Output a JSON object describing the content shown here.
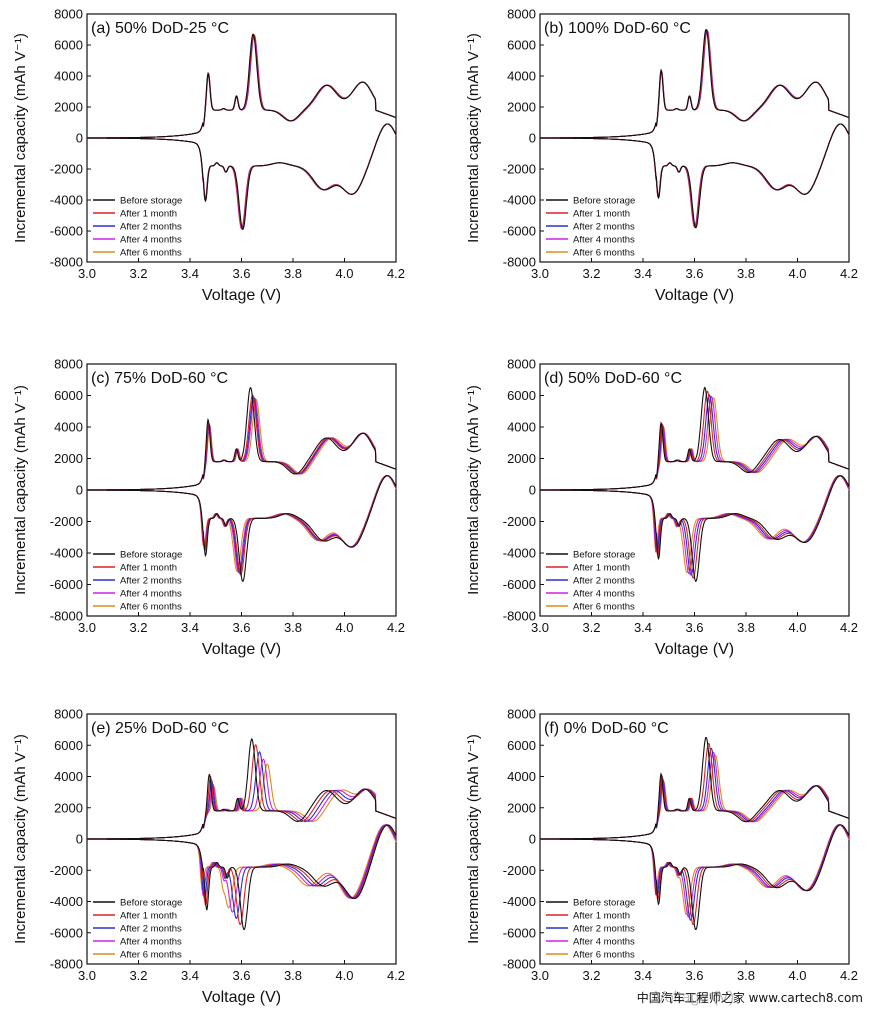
{
  "figure": {
    "watermark": "中国汽车工程师之家 www.cartech8.com"
  },
  "series_colors": {
    "Before storage": "#111111",
    "After 1 month": "#e02020",
    "After 2 months": "#2b2bd8",
    "After 4 months": "#d020e0",
    "After 6 months": "#e08a1a"
  },
  "chart_data": [
    {
      "type": "line",
      "panel": "a",
      "title": "(a) 50% DoD-25 °C",
      "xlabel": "Voltage (V)",
      "ylabel": "Incremental capacity (mAh V⁻¹)",
      "xlim": [
        3.0,
        4.2
      ],
      "ylim": [
        -8000,
        8000
      ],
      "xticks": [
        "3.0",
        "3.2",
        "3.4",
        "3.6",
        "3.8",
        "4.0",
        "4.2"
      ],
      "yticks": [
        "8000",
        "6000",
        "4000",
        "2000",
        "0",
        "-2000",
        "-4000",
        "-6000",
        "-8000"
      ],
      "legend": [
        "Before storage",
        "After 1 month",
        "After 2 months",
        "After 4 months",
        "After 6 months"
      ],
      "legend_position": "bottom-left",
      "charge_peaks": [
        [
          3.47,
          4300
        ],
        [
          3.53,
          1900
        ],
        [
          3.58,
          2700
        ],
        [
          3.645,
          6700
        ],
        [
          3.79,
          1100
        ],
        [
          3.93,
          3400
        ],
        [
          4.07,
          3600
        ]
      ],
      "discharge_peaks": [
        [
          3.46,
          -4200
        ],
        [
          3.505,
          -1600
        ],
        [
          3.54,
          -2200
        ],
        [
          3.605,
          -5900
        ],
        [
          3.75,
          -1600
        ],
        [
          3.92,
          -3300
        ],
        [
          4.03,
          -3600
        ],
        [
          4.17,
          -300
        ]
      ],
      "shift_per_series": [
        0,
        0.002,
        0.003,
        0.004,
        0.005
      ],
      "amp_factor": [
        1.0,
        0.99,
        0.98,
        0.985,
        0.99
      ]
    },
    {
      "type": "line",
      "panel": "b",
      "title": "(b) 100% DoD-60 °C",
      "xlabel": "Voltage (V)",
      "ylabel": "Incremental capacity (mAh V⁻¹)",
      "xlim": [
        3.0,
        4.2
      ],
      "ylim": [
        -8000,
        8000
      ],
      "xticks": [
        "3.0",
        "3.2",
        "3.4",
        "3.6",
        "3.8",
        "4.0",
        "4.2"
      ],
      "yticks": [
        "8000",
        "6000",
        "4000",
        "2000",
        "0",
        "-2000",
        "-4000",
        "-6000",
        "-8000"
      ],
      "legend": [
        "Before storage",
        "After 1 month",
        "After 2 months",
        "After 4 months",
        "After 6 months"
      ],
      "legend_position": "bottom-left",
      "charge_peaks": [
        [
          3.47,
          4500
        ],
        [
          3.53,
          1900
        ],
        [
          3.58,
          2700
        ],
        [
          3.645,
          7000
        ],
        [
          3.79,
          1100
        ],
        [
          3.93,
          3400
        ],
        [
          4.07,
          3600
        ]
      ],
      "discharge_peaks": [
        [
          3.46,
          -4000
        ],
        [
          3.505,
          -1600
        ],
        [
          3.54,
          -2200
        ],
        [
          3.605,
          -5800
        ],
        [
          3.75,
          -1600
        ],
        [
          3.92,
          -3300
        ],
        [
          4.03,
          -3600
        ],
        [
          4.17,
          -300
        ]
      ],
      "shift_per_series": [
        0,
        0.002,
        0.003,
        0.004,
        0.005
      ],
      "amp_factor": [
        1.0,
        0.99,
        0.98,
        0.985,
        0.99
      ]
    },
    {
      "type": "line",
      "panel": "c",
      "title": "(c) 75% DoD-60 °C",
      "xlabel": "Voltage (V)",
      "ylabel": "Incremental capacity (mAh V⁻¹)",
      "xlim": [
        3.0,
        4.2
      ],
      "ylim": [
        -8000,
        8000
      ],
      "xticks": [
        "3.0",
        "3.2",
        "3.4",
        "3.6",
        "3.8",
        "4.0",
        "4.2"
      ],
      "yticks": [
        "8000",
        "6000",
        "4000",
        "2000",
        "0",
        "-2000",
        "-4000",
        "-6000",
        "-8000"
      ],
      "legend": [
        "Before storage",
        "After 1 month",
        "After 2 months",
        "After 4 months",
        "After 6 months"
      ],
      "legend_position": "bottom-left",
      "charge_peaks": [
        [
          3.47,
          4600
        ],
        [
          3.53,
          1900
        ],
        [
          3.58,
          2600
        ],
        [
          3.635,
          6500
        ],
        [
          3.81,
          1000
        ],
        [
          3.93,
          3300
        ],
        [
          4.07,
          3600
        ]
      ],
      "discharge_peaks": [
        [
          3.46,
          -4300
        ],
        [
          3.505,
          -1500
        ],
        [
          3.54,
          -2300
        ],
        [
          3.605,
          -5800
        ],
        [
          3.78,
          -1500
        ],
        [
          3.92,
          -3200
        ],
        [
          4.03,
          -3600
        ],
        [
          4.17,
          -300
        ]
      ],
      "shift_per_series": [
        0,
        0.008,
        0.012,
        0.016,
        0.022
      ],
      "amp_factor": [
        1.0,
        0.9,
        0.87,
        0.86,
        0.84
      ]
    },
    {
      "type": "line",
      "panel": "d",
      "title": "(d) 50% DoD-60 °C",
      "xlabel": "Voltage (V)",
      "ylabel": "Incremental capacity (mAh V⁻¹)",
      "xlim": [
        3.0,
        4.2
      ],
      "ylim": [
        -8000,
        8000
      ],
      "xticks": [
        "3.0",
        "3.2",
        "3.4",
        "3.6",
        "3.8",
        "4.0",
        "4.2"
      ],
      "yticks": [
        "8000",
        "6000",
        "4000",
        "2000",
        "0",
        "-2000",
        "-4000",
        "-6000",
        "-8000"
      ],
      "legend": [
        "Before storage",
        "After 1 month",
        "After 2 months",
        "After 4 months",
        "After 6 months"
      ],
      "legend_position": "bottom-left",
      "charge_peaks": [
        [
          3.47,
          4400
        ],
        [
          3.53,
          1900
        ],
        [
          3.58,
          2600
        ],
        [
          3.64,
          6500
        ],
        [
          3.81,
          1100
        ],
        [
          3.93,
          3200
        ],
        [
          4.07,
          3400
        ]
      ],
      "discharge_peaks": [
        [
          3.46,
          -4500
        ],
        [
          3.505,
          -1500
        ],
        [
          3.54,
          -2300
        ],
        [
          3.605,
          -5800
        ],
        [
          3.76,
          -1500
        ],
        [
          3.92,
          -3100
        ],
        [
          4.03,
          -3300
        ],
        [
          4.17,
          -300
        ]
      ],
      "shift_per_series": [
        0,
        0.01,
        0.018,
        0.026,
        0.034
      ],
      "amp_factor": [
        1.0,
        0.95,
        0.9,
        0.88,
        0.86
      ]
    },
    {
      "type": "line",
      "panel": "e",
      "title": "(e) 25% DoD-60 °C",
      "xlabel": "Voltage (V)",
      "ylabel": "Incremental capacity (mAh V⁻¹)",
      "xlim": [
        3.0,
        4.2
      ],
      "ylim": [
        -8000,
        8000
      ],
      "xticks": [
        "3.0",
        "3.2",
        "3.4",
        "3.6",
        "3.8",
        "4.0",
        "4.2"
      ],
      "yticks": [
        "8000",
        "6000",
        "4000",
        "2000",
        "0",
        "-2000",
        "-4000",
        "-6000",
        "-8000"
      ],
      "legend": [
        "Before storage",
        "After 1 month",
        "After 2 months",
        "After 4 months",
        "After 6 months"
      ],
      "legend_position": "bottom-left",
      "charge_peaks": [
        [
          3.475,
          4200
        ],
        [
          3.53,
          1900
        ],
        [
          3.585,
          2600
        ],
        [
          3.64,
          6400
        ],
        [
          3.82,
          1100
        ],
        [
          3.93,
          3100
        ],
        [
          4.08,
          3200
        ]
      ],
      "discharge_peaks": [
        [
          3.465,
          -4600
        ],
        [
          3.505,
          -1500
        ],
        [
          3.545,
          -2500
        ],
        [
          3.61,
          -5800
        ],
        [
          3.78,
          -1600
        ],
        [
          3.92,
          -3000
        ],
        [
          4.04,
          -3800
        ],
        [
          4.17,
          -300
        ]
      ],
      "shift_per_series": [
        0,
        0.015,
        0.03,
        0.045,
        0.06
      ],
      "amp_factor": [
        1.0,
        0.92,
        0.82,
        0.72,
        0.65
      ]
    },
    {
      "type": "line",
      "panel": "f",
      "title": "(f) 0% DoD-60 °C",
      "xlabel": "Voltage (V)",
      "ylabel": "Incremental capacity (mAh V⁻¹)",
      "xlim": [
        3.0,
        4.2
      ],
      "ylim": [
        -8000,
        8000
      ],
      "xticks": [
        "3.0",
        "3.2",
        "3.4",
        "3.6",
        "3.8",
        "4.0",
        "4.2"
      ],
      "yticks": [
        "8000",
        "6000",
        "4000",
        "2000",
        "0",
        "-2000",
        "-4000",
        "-6000",
        "-8000"
      ],
      "legend": [
        "Before storage",
        "After 1 month",
        "After 2 months",
        "After 4 months",
        "After 6 months"
      ],
      "legend_position": "bottom-left",
      "charge_peaks": [
        [
          3.47,
          4300
        ],
        [
          3.53,
          1900
        ],
        [
          3.58,
          2600
        ],
        [
          3.645,
          6500
        ],
        [
          3.8,
          1100
        ],
        [
          3.93,
          3100
        ],
        [
          4.07,
          3400
        ]
      ],
      "discharge_peaks": [
        [
          3.46,
          -4300
        ],
        [
          3.505,
          -1500
        ],
        [
          3.545,
          -2300
        ],
        [
          3.605,
          -5800
        ],
        [
          3.78,
          -1600
        ],
        [
          3.92,
          -3100
        ],
        [
          4.04,
          -3300
        ],
        [
          4.17,
          -300
        ]
      ],
      "shift_per_series": [
        0,
        0.01,
        0.02,
        0.028,
        0.036
      ],
      "amp_factor": [
        1.0,
        0.92,
        0.85,
        0.8,
        0.76
      ]
    }
  ]
}
